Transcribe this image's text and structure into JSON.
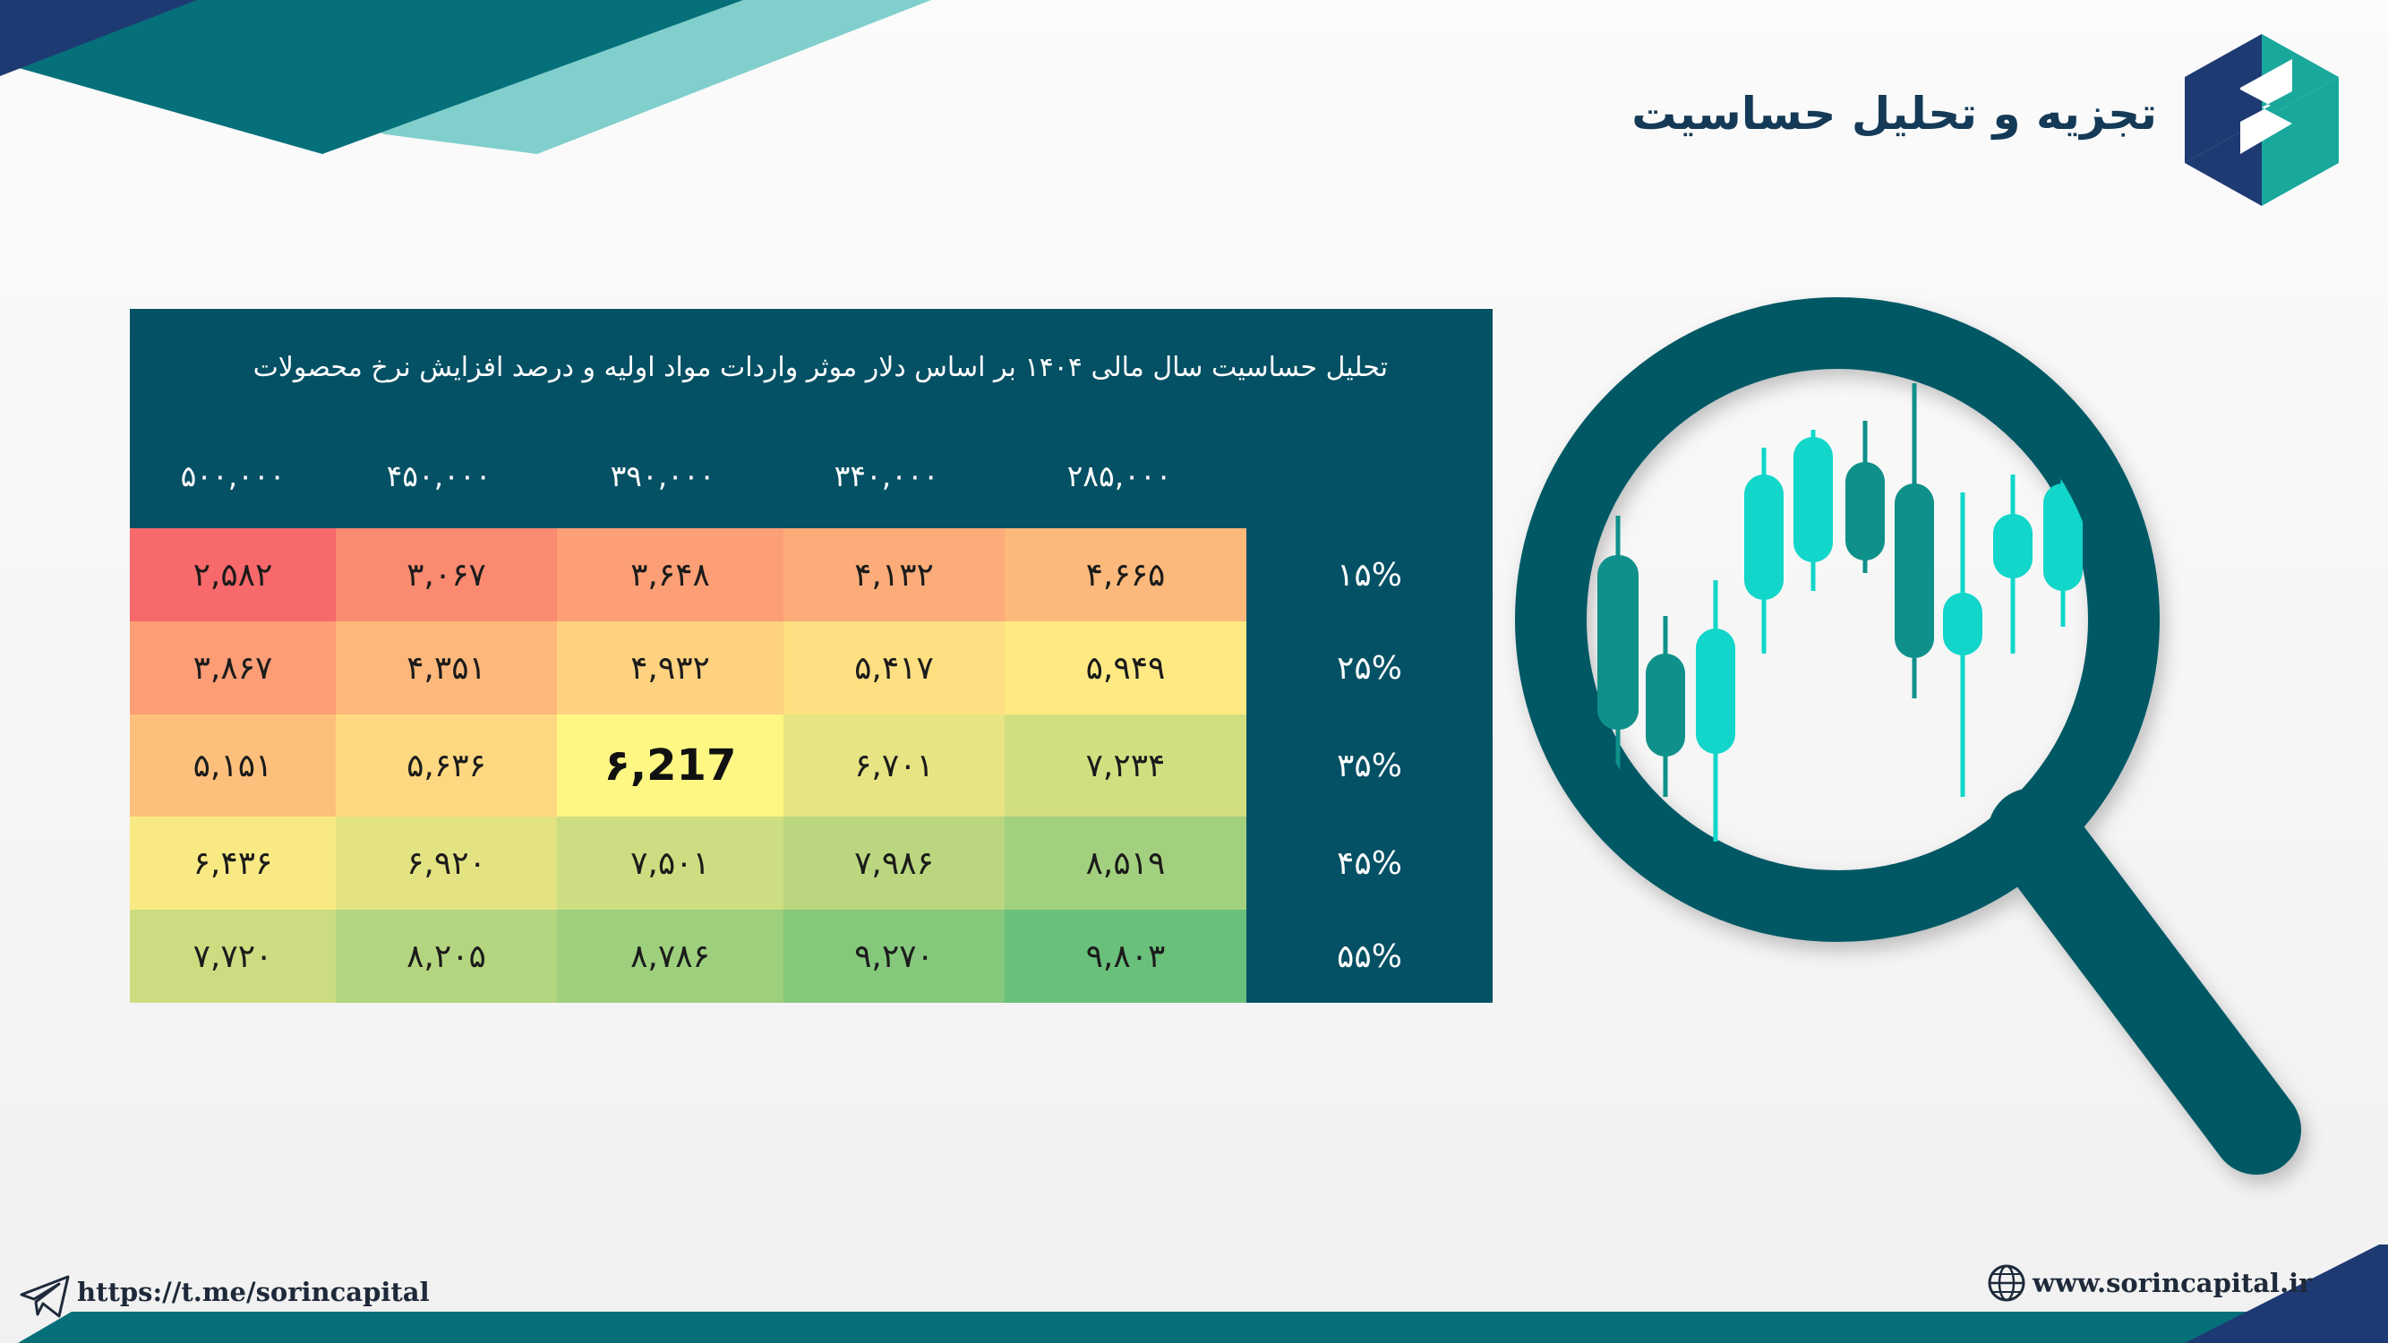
{
  "header": {
    "title": "تجزیه و تحلیل حساسیت"
  },
  "table": {
    "subtitle": "تحلیل حساسیت سال مالی ۱۴۰۴ بر اساس دلار موثر واردات مواد اولیه و درصد افزایش نرخ محصولات",
    "column_headers": [
      "۵۰۰,۰۰۰",
      "۴۵۰,۰۰۰",
      "۳۹۰,۰۰۰",
      "۳۴۰,۰۰۰",
      "۲۸۵,۰۰۰"
    ],
    "row_headers": [
      "۱۵%",
      "۲۵%",
      "۳۵%",
      "۴۵%",
      "۵۵%"
    ],
    "rows": [
      [
        "۲,۵۸۲",
        "۳,۰۶۷",
        "۳,۶۴۸",
        "۴,۱۳۲",
        "۴,۶۶۵"
      ],
      [
        "۳,۸۶۷",
        "۴,۳۵۱",
        "۴,۹۳۲",
        "۵,۴۱۷",
        "۵,۹۴۹"
      ],
      [
        "۵,۱۵۱",
        "۵,۶۳۶",
        "۶,217",
        "۶,۷۰۱",
        "۷,۲۳۴"
      ],
      [
        "۶,۴۳۶",
        "۶,۹۲۰",
        "۷,۵۰۱",
        "۷,۹۸۶",
        "۸,۵۱۹"
      ],
      [
        "۷,۷۲۰",
        "۸,۲۰۵",
        "۸,۷۸۶",
        "۹,۲۷۰",
        "۹,۸۰۳"
      ]
    ],
    "highlighted_cell": "row 3, column 3",
    "cell_colors": [
      [
        "#f8696b",
        "#fa8a70",
        "#fc9f76",
        "#fcac78",
        "#fdb87b"
      ],
      [
        "#fc9d76",
        "#fdb77a",
        "#fed27f",
        "#fedf81",
        "#fee983"
      ],
      [
        "#fdc07c",
        "#fed880",
        "#fff783",
        "#e6e483",
        "#d2df81"
      ],
      [
        "#f8e983",
        "#e4e383",
        "#cddd81",
        "#bad77f",
        "#a3d07e"
      ],
      [
        "#ccdc81",
        "#b4d57f",
        "#9dcf7d",
        "#85c87c",
        "#69c07b"
      ]
    ]
  },
  "footer": {
    "telegram_url": "https://t.me/sorincapital",
    "website_url": "www.sorincapital.ir"
  },
  "icons": {
    "logo": "sorin-capital-logo",
    "magnifier": "magnifying-glass-candlestick-illustration",
    "telegram": "telegram-plane-icon",
    "globe": "globe-icon"
  },
  "colors": {
    "title": "#143a57",
    "panel": "#045064",
    "teal_dark": "#045865",
    "teal_accent": "#1aa89c",
    "candle_light": "#11d6c9",
    "candle_dark": "#10908a"
  }
}
